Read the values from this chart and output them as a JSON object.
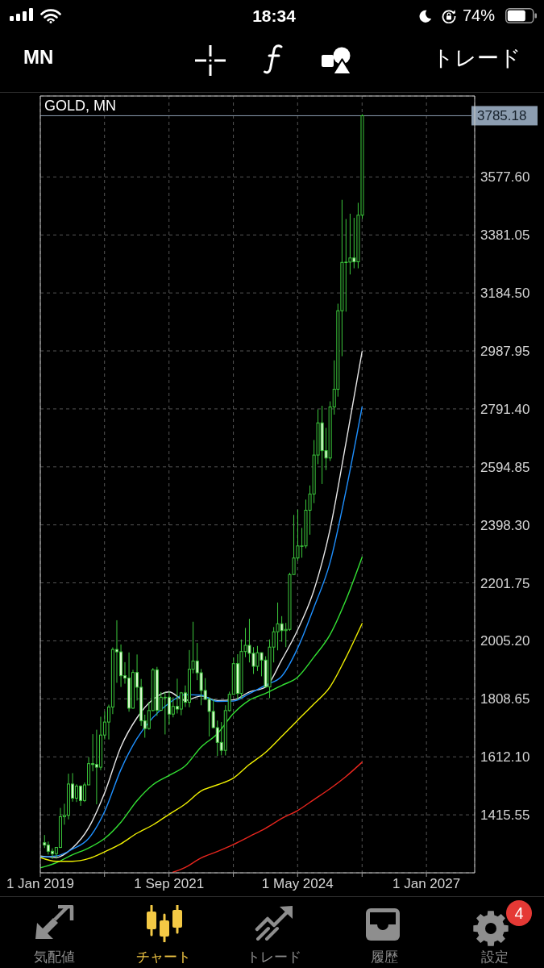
{
  "chart_data": {
    "type": "candlestick",
    "title": "GOLD, MN",
    "x": [
      "2019-02",
      "2019-03",
      "2019-04",
      "2019-05",
      "2019-06",
      "2019-07",
      "2019-08",
      "2019-09",
      "2019-10",
      "2019-11",
      "2019-12",
      "2020-01",
      "2020-02",
      "2020-03",
      "2020-04",
      "2020-05",
      "2020-06",
      "2020-07",
      "2020-08",
      "2020-09",
      "2020-10",
      "2020-11",
      "2020-12",
      "2021-01",
      "2021-02",
      "2021-03",
      "2021-04",
      "2021-05",
      "2021-06",
      "2021-07",
      "2021-08",
      "2021-09",
      "2021-10",
      "2021-11",
      "2021-12",
      "2022-01",
      "2022-02",
      "2022-03",
      "2022-04",
      "2022-05",
      "2022-06",
      "2022-07",
      "2022-08",
      "2022-09",
      "2022-10",
      "2022-11",
      "2022-12",
      "2023-01",
      "2023-02",
      "2023-03",
      "2023-04",
      "2023-05",
      "2023-06",
      "2023-07",
      "2023-08",
      "2023-09",
      "2023-10",
      "2023-11",
      "2023-12",
      "2024-01",
      "2024-02",
      "2024-03",
      "2024-04",
      "2024-05",
      "2024-06",
      "2024-07",
      "2024-08",
      "2024-09",
      "2024-10",
      "2024-11",
      "2024-12",
      "2025-01",
      "2025-02",
      "2025-03",
      "2025-04",
      "2025-05",
      "2025-06",
      "2025-07",
      "2025-08",
      "2025-09"
    ],
    "ohlc": [
      [
        1321,
        1347,
        1303,
        1313
      ],
      [
        1313,
        1325,
        1281,
        1292
      ],
      [
        1292,
        1302,
        1266,
        1284
      ],
      [
        1284,
        1305,
        1267,
        1305
      ],
      [
        1305,
        1439,
        1303,
        1409
      ],
      [
        1409,
        1453,
        1382,
        1414
      ],
      [
        1414,
        1555,
        1400,
        1520
      ],
      [
        1520,
        1557,
        1460,
        1472
      ],
      [
        1472,
        1519,
        1459,
        1513
      ],
      [
        1513,
        1516,
        1446,
        1464
      ],
      [
        1464,
        1525,
        1459,
        1517
      ],
      [
        1517,
        1611,
        1517,
        1589
      ],
      [
        1589,
        1689,
        1563,
        1586
      ],
      [
        1586,
        1704,
        1451,
        1577
      ],
      [
        1577,
        1748,
        1567,
        1686
      ],
      [
        1686,
        1765,
        1671,
        1730
      ],
      [
        1730,
        1789,
        1671,
        1781
      ],
      [
        1781,
        1983,
        1757,
        1976
      ],
      [
        1976,
        2075,
        1863,
        1968
      ],
      [
        1968,
        1993,
        1849,
        1887
      ],
      [
        1887,
        1933,
        1860,
        1879
      ],
      [
        1879,
        1966,
        1765,
        1777
      ],
      [
        1777,
        1907,
        1775,
        1898
      ],
      [
        1898,
        1959,
        1803,
        1848
      ],
      [
        1848,
        1876,
        1717,
        1734
      ],
      [
        1734,
        1755,
        1677,
        1708
      ],
      [
        1708,
        1798,
        1704,
        1769
      ],
      [
        1769,
        1913,
        1766,
        1907
      ],
      [
        1907,
        1917,
        1751,
        1770
      ],
      [
        1770,
        1832,
        1767,
        1814
      ],
      [
        1814,
        1832,
        1688,
        1814
      ],
      [
        1814,
        1834,
        1722,
        1757
      ],
      [
        1757,
        1814,
        1746,
        1783
      ],
      [
        1783,
        1877,
        1759,
        1774
      ],
      [
        1774,
        1832,
        1753,
        1829
      ],
      [
        1829,
        1854,
        1781,
        1797
      ],
      [
        1797,
        1974,
        1780,
        1909
      ],
      [
        1909,
        2070,
        1895,
        1937
      ],
      [
        1937,
        1998,
        1872,
        1897
      ],
      [
        1897,
        1910,
        1787,
        1837
      ],
      [
        1837,
        1879,
        1805,
        1807
      ],
      [
        1807,
        1814,
        1681,
        1766
      ],
      [
        1766,
        1808,
        1709,
        1711
      ],
      [
        1711,
        1735,
        1615,
        1661
      ],
      [
        1661,
        1730,
        1617,
        1634
      ],
      [
        1634,
        1787,
        1617,
        1769
      ],
      [
        1769,
        1833,
        1765,
        1824
      ],
      [
        1824,
        1949,
        1823,
        1928
      ],
      [
        1928,
        1960,
        1805,
        1827
      ],
      [
        1827,
        2010,
        1810,
        1969
      ],
      [
        1969,
        2049,
        1950,
        1990
      ],
      [
        1990,
        2080,
        1932,
        1963
      ],
      [
        1963,
        1984,
        1893,
        1919
      ],
      [
        1919,
        1988,
        1903,
        1965
      ],
      [
        1965,
        1966,
        1885,
        1940
      ],
      [
        1940,
        1953,
        1846,
        1849
      ],
      [
        1849,
        2010,
        1811,
        1984
      ],
      [
        1984,
        2052,
        1932,
        2036
      ],
      [
        2036,
        2135,
        1973,
        2063
      ],
      [
        2063,
        2089,
        2002,
        2040
      ],
      [
        2040,
        2066,
        1984,
        2044
      ],
      [
        2044,
        2236,
        2039,
        2230
      ],
      [
        2230,
        2432,
        2229,
        2286
      ],
      [
        2286,
        2450,
        2277,
        2327
      ],
      [
        2327,
        2388,
        2287,
        2327
      ],
      [
        2327,
        2484,
        2319,
        2448
      ],
      [
        2448,
        2532,
        2365,
        2503
      ],
      [
        2503,
        2686,
        2472,
        2635
      ],
      [
        2635,
        2790,
        2604,
        2744
      ],
      [
        2744,
        2802,
        2537,
        2650
      ],
      [
        2650,
        2727,
        2584,
        2625
      ],
      [
        2625,
        2817,
        2615,
        2798
      ],
      [
        2798,
        2956,
        2772,
        2858
      ],
      [
        2858,
        3148,
        2833,
        3124
      ],
      [
        3124,
        3500,
        2970,
        3288
      ],
      [
        3288,
        3435,
        3121,
        3289
      ],
      [
        3289,
        3453,
        3247,
        3303
      ],
      [
        3303,
        3439,
        3268,
        3290
      ],
      [
        3290,
        3490,
        3268,
        3448
      ],
      [
        3448,
        3790,
        3436,
        3785.18
      ]
    ],
    "color": "#3cc83c",
    "colors": [
      "#e2fbd6",
      "#e2fbd6",
      "#e2fbd6",
      "#000000",
      "#000000",
      "#000000",
      "#000000",
      "#e2fbd6",
      "#000000",
      "#e2fbd6",
      "#000000",
      "#000000",
      "#e2fbd6",
      "#e2fbd6",
      "#000000",
      "#000000",
      "#000000",
      "#000000",
      "#e2fbd6",
      "#e2fbd6",
      "#e2fbd6",
      "#e2fbd6",
      "#000000",
      "#e2fbd6",
      "#e2fbd6",
      "#e2fbd6",
      "#000000",
      "#000000",
      "#e2fbd6",
      "#000000",
      "#000000",
      "#e2fbd6",
      "#000000",
      "#e2fbd6",
      "#000000",
      "#e2fbd6",
      "#000000",
      "#000000",
      "#e2fbd6",
      "#e2fbd6",
      "#e2fbd6",
      "#e2fbd6",
      "#e2fbd6",
      "#e2fbd6",
      "#e2fbd6",
      "#000000",
      "#000000",
      "#000000",
      "#e2fbd6",
      "#000000",
      "#000000",
      "#e2fbd6",
      "#e2fbd6",
      "#000000",
      "#e2fbd6",
      "#e2fbd6",
      "#000000",
      "#000000",
      "#000000",
      "#e2fbd6",
      "#000000",
      "#000000",
      "#000000",
      "#000000",
      "#000000",
      "#000000",
      "#000000",
      "#000000",
      "#000000",
      "#e2fbd6",
      "#e2fbd6",
      "#000000",
      "#000000",
      "#000000",
      "#000000",
      "#000000",
      "#000000",
      "#e2fbd6",
      "#000000",
      "#000000"
    ],
    "series": [
      {
        "type": "line",
        "color": "#e6e6e6",
        "x": [
          "2019-01",
          "2019-05",
          "2019-09",
          "2020-01",
          "2020-05",
          "2020-09",
          "2021-01",
          "2021-05",
          "2021-09",
          "2022-01",
          "2022-05",
          "2022-09",
          "2023-01",
          "2023-05",
          "2023-09",
          "2024-01",
          "2024-05",
          "2024-09",
          "2025-01",
          "2025-05",
          "2025-09"
        ],
        "values": [
          1276,
          1271,
          1303,
          1371,
          1489,
          1645,
          1744,
          1806,
          1832,
          1803,
          1818,
          1803,
          1805,
          1832,
          1848,
          1940,
          2042,
          2176,
          2382,
          2674,
          2986
        ]
      },
      {
        "type": "line",
        "color": "#1e90ff",
        "x": [
          "2019-01",
          "2019-05",
          "2019-09",
          "2020-01",
          "2020-05",
          "2020-09",
          "2021-01",
          "2021-05",
          "2021-09",
          "2022-01",
          "2022-05",
          "2022-09",
          "2023-01",
          "2023-05",
          "2023-09",
          "2024-01",
          "2024-05",
          "2024-09",
          "2025-01",
          "2025-05",
          "2025-09"
        ],
        "values": [
          1273,
          1276,
          1299,
          1335,
          1426,
          1568,
          1674,
          1745,
          1794,
          1823,
          1821,
          1800,
          1801,
          1826,
          1855,
          1885,
          1980,
          2118,
          2270,
          2512,
          2798
        ]
      },
      {
        "type": "line",
        "color": "#33e033",
        "x": [
          "2019-01",
          "2019-05",
          "2019-09",
          "2020-01",
          "2020-05",
          "2020-09",
          "2021-01",
          "2021-05",
          "2021-09",
          "2022-01",
          "2022-05",
          "2022-09",
          "2023-01",
          "2023-05",
          "2023-09",
          "2024-01",
          "2024-05",
          "2024-09",
          "2025-01",
          "2025-05",
          "2025-09"
        ],
        "values": [
          1236,
          1253,
          1280,
          1303,
          1335,
          1390,
          1463,
          1517,
          1549,
          1581,
          1645,
          1690,
          1759,
          1804,
          1827,
          1854,
          1882,
          1950,
          2026,
          2143,
          2289
        ]
      },
      {
        "type": "line",
        "color": "#f0f000",
        "x": [
          "2019-01",
          "2019-05",
          "2019-09",
          "2020-01",
          "2020-05",
          "2020-09",
          "2021-01",
          "2021-05",
          "2021-09",
          "2022-01",
          "2022-05",
          "2022-09",
          "2023-01",
          "2023-05",
          "2023-09",
          "2024-01",
          "2024-05",
          "2024-09",
          "2025-01",
          "2025-05",
          "2025-09"
        ],
        "values": [
          1271,
          1258,
          1258,
          1267,
          1290,
          1317,
          1353,
          1381,
          1417,
          1452,
          1496,
          1517,
          1540,
          1586,
          1627,
          1681,
          1736,
          1791,
          1849,
          1948,
          2064
        ]
      },
      {
        "type": "line",
        "color": "#e8261e",
        "x": [
          "2021-10",
          "2022-01",
          "2022-05",
          "2022-09",
          "2023-01",
          "2023-05",
          "2023-09",
          "2024-01",
          "2024-05",
          "2024-09",
          "2025-01",
          "2025-05",
          "2025-09"
        ],
        "values": [
          1221,
          1237,
          1269,
          1291,
          1315,
          1342,
          1370,
          1403,
          1430,
          1467,
          1504,
          1545,
          1594
        ]
      }
    ],
    "xlim": [
      "2019-01-01",
      "2028-01-01"
    ],
    "xticks": [
      {
        "value": "2019-01-01",
        "label": "1 Jan 2019"
      },
      {
        "value": "2020-05-01",
        "label": null
      },
      {
        "value": "2021-09-01",
        "label": "1 Sep 2021"
      },
      {
        "value": "2023-01-01",
        "label": null
      },
      {
        "value": "2024-05-01",
        "label": "1 May 2024"
      },
      {
        "value": "2025-09-01",
        "label": null
      },
      {
        "value": "2027-01-01",
        "label": "1 Jan 2027"
      }
    ],
    "ylim": [
      1219,
      3852
    ],
    "yticks": [
      {
        "value": 1415.55,
        "label": "1415.55"
      },
      {
        "value": 1612.1,
        "label": "1612.10"
      },
      {
        "value": 1808.65,
        "label": "1808.65"
      },
      {
        "value": 2005.2,
        "label": "2005.20"
      },
      {
        "value": 2201.75,
        "label": "2201.75"
      },
      {
        "value": 2398.3,
        "label": "2398.30"
      },
      {
        "value": 2594.85,
        "label": "2594.85"
      },
      {
        "value": 2791.4,
        "label": "2791.40"
      },
      {
        "value": 2987.95,
        "label": "2987.95"
      },
      {
        "value": 3184.5,
        "label": "3184.50"
      },
      {
        "value": 3381.05,
        "label": "3381.05"
      },
      {
        "value": 3577.6,
        "label": "3577.60"
      }
    ],
    "grid": true,
    "ref_lines": [
      {
        "axis": "y",
        "value": 3785.18,
        "label": "3785.18",
        "color": "#8c9db0"
      }
    ],
    "annotations": [
      "18:34",
      "74%",
      "MN",
      "トレード",
      "気配値",
      "チャート",
      "トレード",
      "履歴",
      "設定",
      "4"
    ]
  }
}
